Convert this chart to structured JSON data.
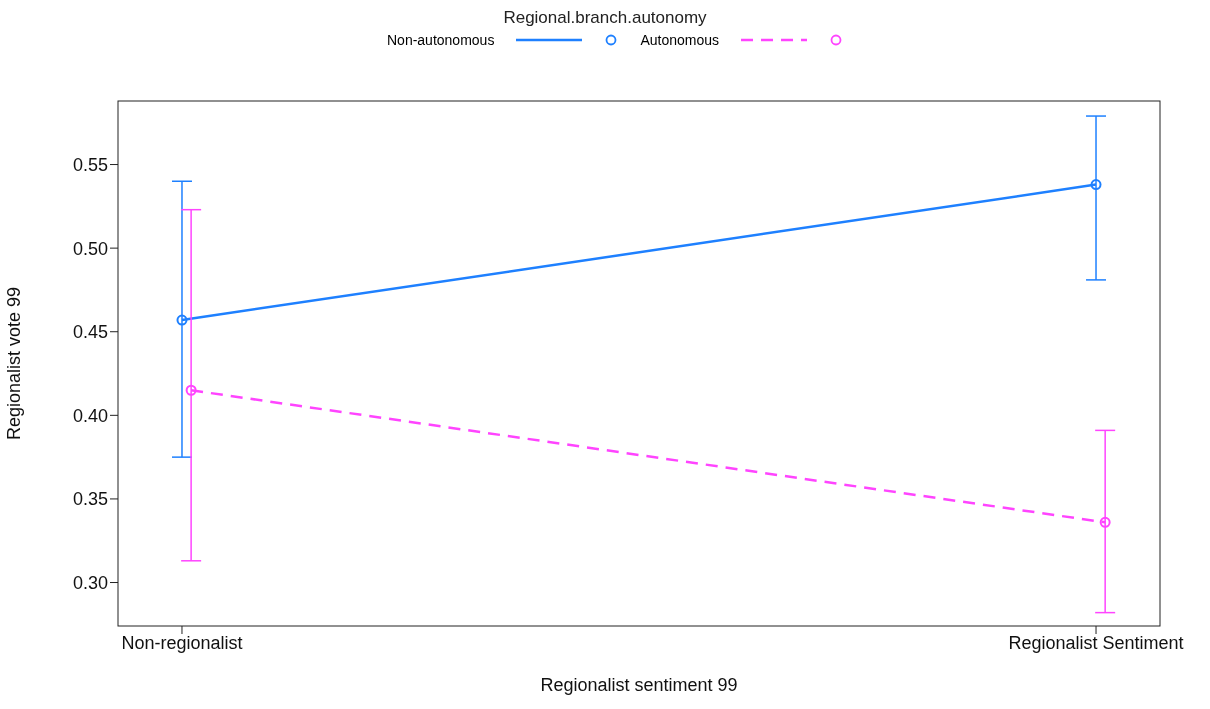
{
  "chart_data": {
    "type": "line",
    "xlabel": "Regionalist sentiment 99",
    "ylabel": "Regionalist vote 99",
    "legend_title": "Regional.branch.autonomy",
    "legend": "top",
    "marker": "circle",
    "categories": [
      "Non-regionalist",
      "Regionalist Sentiment"
    ],
    "ylim": [
      0.274,
      0.588
    ],
    "yticks": [
      {
        "value": 0.3,
        "label": "0.30"
      },
      0.35,
      {
        "value": 0.4,
        "label": "0.40"
      },
      0.45,
      {
        "value": 0.5,
        "label": "0.50"
      },
      0.55
    ],
    "series": [
      {
        "name": "Non-autonomous",
        "color": "#1e80ff",
        "line_style": "solid",
        "values": [
          0.457,
          0.538
        ],
        "errors": [
          [
            0.375,
            0.54
          ],
          [
            0.481,
            0.579
          ]
        ]
      },
      {
        "name": "Autonomous",
        "color": "#ff44ff",
        "line_style": "dashed",
        "values": [
          0.415,
          0.336
        ],
        "errors": [
          [
            0.313,
            0.523
          ],
          [
            0.282,
            0.391
          ]
        ]
      }
    ]
  }
}
